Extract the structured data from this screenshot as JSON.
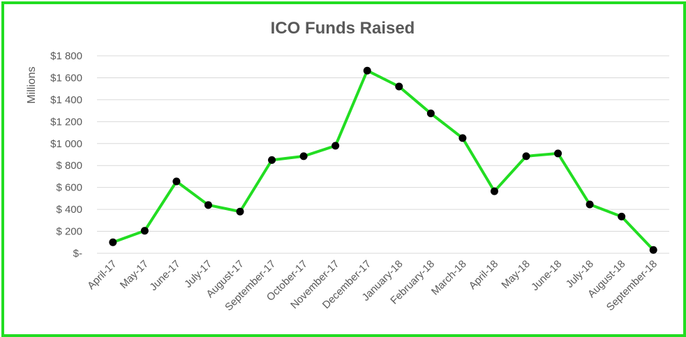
{
  "chart_data": {
    "type": "line",
    "title": "ICO Funds Raised",
    "ylabel": "Millions",
    "xlabel": "",
    "categories": [
      "April-17",
      "May-17",
      "June-17",
      "July-17",
      "August-17",
      "September-17",
      "October-17",
      "November-17",
      "December-17",
      "January-18",
      "February-18",
      "March-18",
      "April-18",
      "May-18",
      "June-18",
      "July-18",
      "August-18",
      "September-18"
    ],
    "series": [
      {
        "name": "",
        "values": [
          100,
          205,
          655,
          440,
          380,
          850,
          885,
          980,
          1665,
          1520,
          1275,
          1050,
          565,
          885,
          910,
          445,
          335,
          30
        ]
      }
    ],
    "ylim": [
      0,
      1800
    ],
    "yticks": [
      0,
      200,
      400,
      600,
      800,
      1000,
      1200,
      1400,
      1600,
      1800
    ],
    "ytick_labels": [
      "$-",
      "$ 200",
      "$ 400",
      "$ 600",
      "$ 800",
      "$1 000",
      "$1 200",
      "$1 400",
      "$1 600",
      "$1 800"
    ],
    "grid": true,
    "legend": "none",
    "line_color": "#22dd22",
    "marker_color": "#000000",
    "gridline_color": "#d9d9d9"
  }
}
